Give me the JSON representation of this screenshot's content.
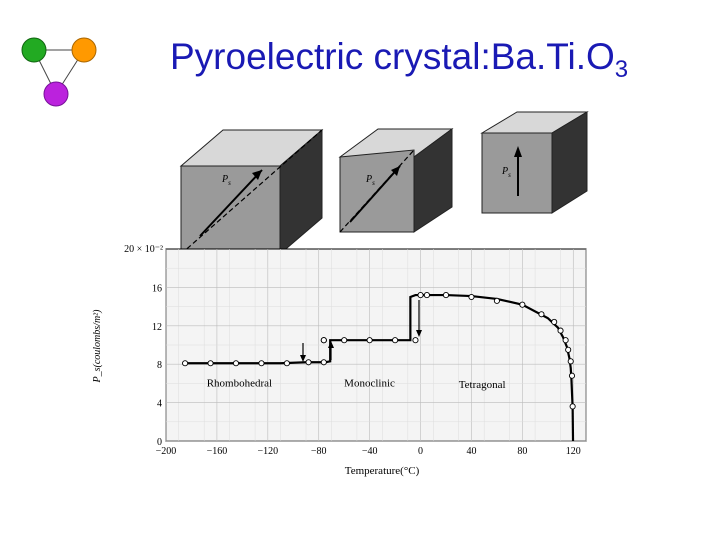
{
  "slide": {
    "title_main": "Pyroelectric crystal:Ba.Ti.O",
    "title_sub": "3"
  },
  "logo": {
    "colors": [
      "#22aa22",
      "#ff9900",
      "#bb22dd"
    ]
  },
  "crystals": [
    {
      "label": "P",
      "subscript": "s",
      "direction": "body-diagonal"
    },
    {
      "label": "P",
      "subscript": "s",
      "direction": "face-diagonal"
    },
    {
      "label": "P",
      "subscript": "s",
      "direction": "vertical"
    }
  ],
  "chart_data": {
    "type": "line",
    "xlabel": "Temperature(°C)",
    "ylabel": "P_s(coulombs/m²)",
    "xlim": [
      -200,
      130
    ],
    "ylim": [
      0,
      20
    ],
    "ytick_top_label": "20 × 10⁻²",
    "xticks": [
      -200,
      -160,
      -120,
      -80,
      -40,
      0,
      40,
      80,
      120
    ],
    "xtick_labels": [
      "−200",
      "−160",
      "−120",
      "−80",
      "−40",
      "0",
      "40",
      "80",
      "120"
    ],
    "yticks": [
      0,
      4,
      8,
      12,
      16
    ],
    "ytick_labels": [
      "0",
      "4",
      "8",
      "12",
      "16"
    ],
    "grid": true,
    "regions": [
      {
        "label": "Rhombohedral",
        "x": -168,
        "y": 5.7
      },
      {
        "label": "Monoclinic",
        "x": -60,
        "y": 5.7
      },
      {
        "label": "Tetragonal",
        "x": 30,
        "y": 5.5
      }
    ],
    "series": [
      {
        "x": [
          -185,
          -170,
          -150,
          -130,
          -110,
          -90,
          -75,
          -71,
          -71,
          -60,
          -40,
          -20,
          -8,
          -8,
          -4,
          5,
          20,
          40,
          60,
          80,
          100,
          108,
          112,
          115,
          117,
          118,
          118.6,
          119,
          119.5
        ],
        "y": [
          8.1,
          8.1,
          8.1,
          8.1,
          8.1,
          8.2,
          8.2,
          8.3,
          10.5,
          10.5,
          10.5,
          10.5,
          10.5,
          15.0,
          15.2,
          15.2,
          15.2,
          15.1,
          14.8,
          14.2,
          12.8,
          11.8,
          10.8,
          9.8,
          8.6,
          7.6,
          6.3,
          5.0,
          3.5
        ]
      }
    ],
    "markers": {
      "x": [
        -185,
        -165,
        -145,
        -125,
        -105,
        -88,
        -76,
        -76,
        -76,
        -60,
        -40,
        -20,
        -4,
        0,
        5,
        20,
        40,
        60,
        80,
        95,
        105,
        110,
        114,
        116,
        118,
        119,
        119.5
      ],
      "y": [
        8.1,
        8.1,
        8.1,
        8.1,
        8.1,
        8.2,
        8.2,
        10.5,
        10.5,
        10.5,
        10.5,
        10.5,
        10.5,
        15.2,
        15.2,
        15.2,
        15.0,
        14.6,
        14.2,
        13.2,
        12.4,
        11.5,
        10.5,
        9.5,
        8.3,
        6.8,
        3.6
      ]
    }
  }
}
